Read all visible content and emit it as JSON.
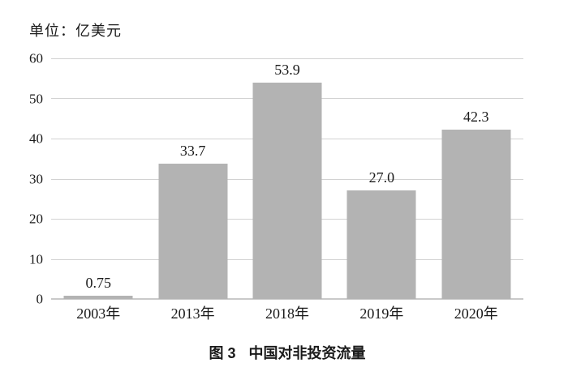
{
  "chart_data": {
    "type": "bar",
    "unit_label": "单位：亿美元",
    "caption_label": "图 3",
    "caption_title": "中国对非投资流量",
    "categories": [
      "2003年",
      "2013年",
      "2018年",
      "2019年",
      "2020年"
    ],
    "values": [
      0.75,
      33.7,
      53.9,
      27.0,
      42.3
    ],
    "value_labels": [
      "0.75",
      "33.7",
      "53.9",
      "27.0",
      "42.3"
    ],
    "xlabel": "",
    "ylabel": "",
    "ylim": [
      0,
      60
    ],
    "yticks": [
      0,
      10,
      20,
      30,
      40,
      50,
      60
    ],
    "grid": true,
    "legend_position": "none",
    "bar_color": "#b3b3b3",
    "gridline_color": "#d2d2d2",
    "baseline_color": "#c9c9c9",
    "text_color": "#1a1a1a",
    "background_color": "#ffffff"
  }
}
